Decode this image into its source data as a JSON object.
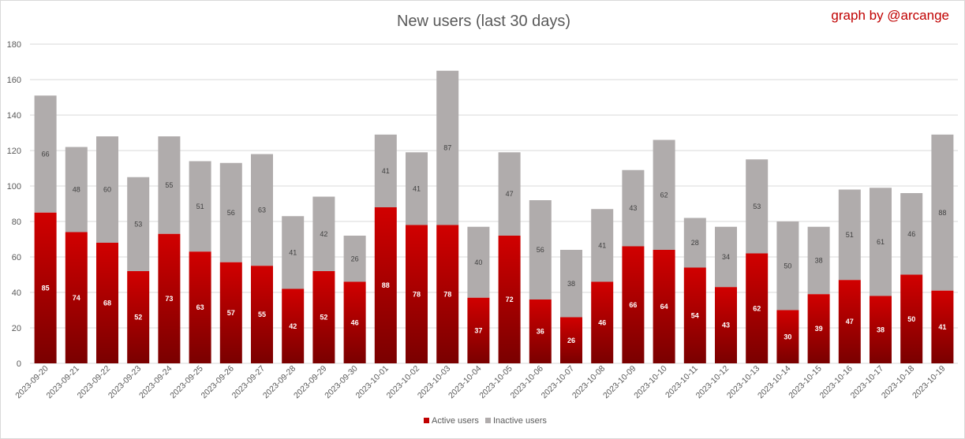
{
  "chart_data": {
    "type": "bar",
    "stacked": true,
    "title": "New users (last 30 days)",
    "credit": "graph by @arcange",
    "ylim": [
      0,
      180
    ],
    "yticks": [
      0,
      20,
      40,
      60,
      80,
      100,
      120,
      140,
      160,
      180
    ],
    "grid": true,
    "legend_position": "bottom",
    "categories": [
      "2023-09-20",
      "2023-09-21",
      "2023-09-22",
      "2023-09-23",
      "2023-09-24",
      "2023-09-25",
      "2023-09-26",
      "2023-09-27",
      "2023-09-28",
      "2023-09-29",
      "2023-09-30",
      "2023-10-01",
      "2023-10-02",
      "2023-10-03",
      "2023-10-04",
      "2023-10-05",
      "2023-10-06",
      "2023-10-07",
      "2023-10-08",
      "2023-10-09",
      "2023-10-10",
      "2023-10-11",
      "2023-10-12",
      "2023-10-13",
      "2023-10-14",
      "2023-10-15",
      "2023-10-16",
      "2023-10-17",
      "2023-10-18",
      "2023-10-19"
    ],
    "series": [
      {
        "name": "Active users",
        "color": "#c00000",
        "values": [
          85,
          74,
          68,
          52,
          73,
          63,
          57,
          55,
          42,
          52,
          46,
          88,
          78,
          78,
          37,
          72,
          36,
          26,
          46,
          66,
          64,
          54,
          43,
          62,
          30,
          39,
          47,
          38,
          50,
          41
        ]
      },
      {
        "name": "Inactive users",
        "color": "#b0acac",
        "values": [
          66,
          48,
          60,
          53,
          55,
          51,
          56,
          63,
          41,
          42,
          26,
          41,
          41,
          87,
          40,
          47,
          56,
          38,
          41,
          43,
          62,
          28,
          34,
          53,
          50,
          38,
          51,
          61,
          46,
          88
        ]
      }
    ],
    "colors": {
      "credit": "#c00000",
      "gridline": "#d9d9d9",
      "active_dark": "#7a0000"
    }
  }
}
